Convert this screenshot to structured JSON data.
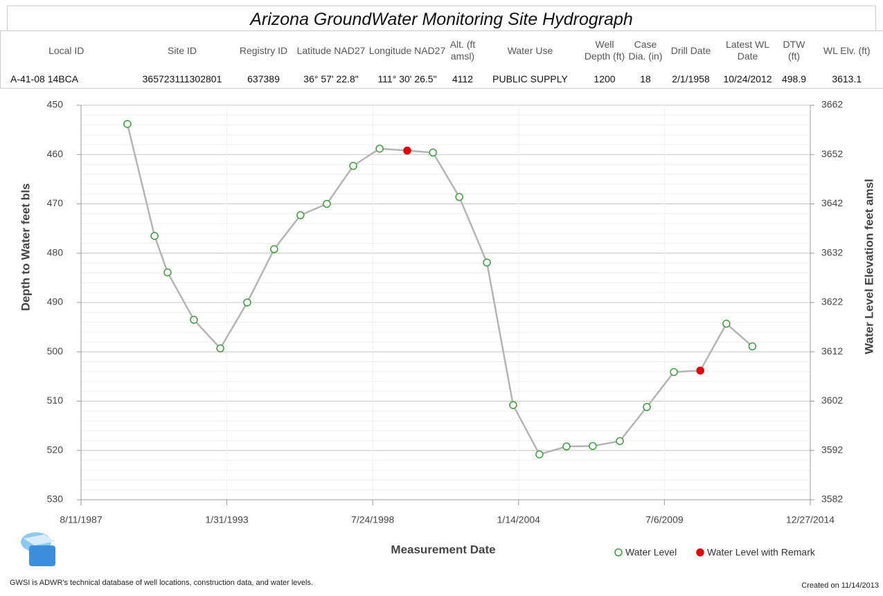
{
  "title": "Arizona GroundWater Monitoring Site Hydrograph",
  "table": {
    "headers": [
      "Local ID",
      "Site ID",
      "Registry ID",
      "Latitude NAD27",
      "Longitude NAD27",
      "Alt. (ft amsl)",
      "Water Use",
      "Well Depth (ft)",
      "Case Dia. (in)",
      "Drill Date",
      "Latest WL Date",
      "DTW (ft)",
      "WL Elv. (ft)"
    ],
    "rows": [
      [
        "A-41-08 14BCA",
        "365723111302801",
        "637389",
        "36° 57' 22.8\"",
        "111° 30' 26.5\"",
        "4112",
        "PUBLIC SUPPLY",
        "1200",
        "18",
        "2/1/1958",
        "10/24/2012",
        "498.9",
        "3613.1"
      ]
    ]
  },
  "chart_data": {
    "type": "line",
    "x_label": "Measurement Date",
    "y_label": "Depth to Water feet bls",
    "y2_label": "Water Level Elevation feet amsl",
    "xlim": [
      "8/11/1987",
      "12/27/2014"
    ],
    "xticks": [
      "8/11/1987",
      "1/31/1993",
      "7/24/1998",
      "1/14/2004",
      "7/6/2009",
      "12/27/2014"
    ],
    "ylim": [
      530,
      450
    ],
    "yticks": [
      450,
      460,
      470,
      480,
      490,
      500,
      510,
      520,
      530
    ],
    "y2lim": [
      3582,
      3662
    ],
    "y2ticks": [
      3662,
      3652,
      3642,
      3632,
      3622,
      3612,
      3602,
      3592,
      3582
    ],
    "grid": true,
    "line_color": "#b4b4b4",
    "series": [
      {
        "name": "Water Level",
        "color": "#3c9c3c",
        "filled": false,
        "x": [
          "5/8/1989",
          "5/15/1990",
          "11/10/1990",
          "11/6/1991",
          "11/2/1992",
          "11/6/1993",
          "11/10/1994",
          "11/6/1995",
          "11/2/1996",
          "10/30/1997",
          "10/26/1998",
          "10/27/2000",
          "10/23/2001",
          "11/6/2002",
          "10/31/2003",
          "10/26/2004",
          "11/1/2005",
          "10/27/2006",
          "11/2/2007",
          "11/6/2008",
          "11/13/2009",
          "11/3/2011",
          "10/24/2012"
        ],
        "values": [
          453.8,
          476.5,
          483.9,
          493.5,
          499.3,
          490,
          479.2,
          472.3,
          470,
          462.3,
          458.8,
          459.6,
          468.6,
          481.9,
          510.8,
          520.8,
          519.2,
          519.1,
          518.1,
          511.2,
          504.1,
          494.3,
          498.9
        ]
      },
      {
        "name": "Water Level with Remark",
        "color": "#e00000",
        "filled": true,
        "x": [
          "11/9/1999",
          "11/10/2010"
        ],
        "values": [
          459.2,
          503.8
        ]
      }
    ]
  },
  "footer": {
    "note": "GWSI is ADWR's technical database of well locations, construction data, and water levels.",
    "created": "Created on 11/14/2013"
  }
}
